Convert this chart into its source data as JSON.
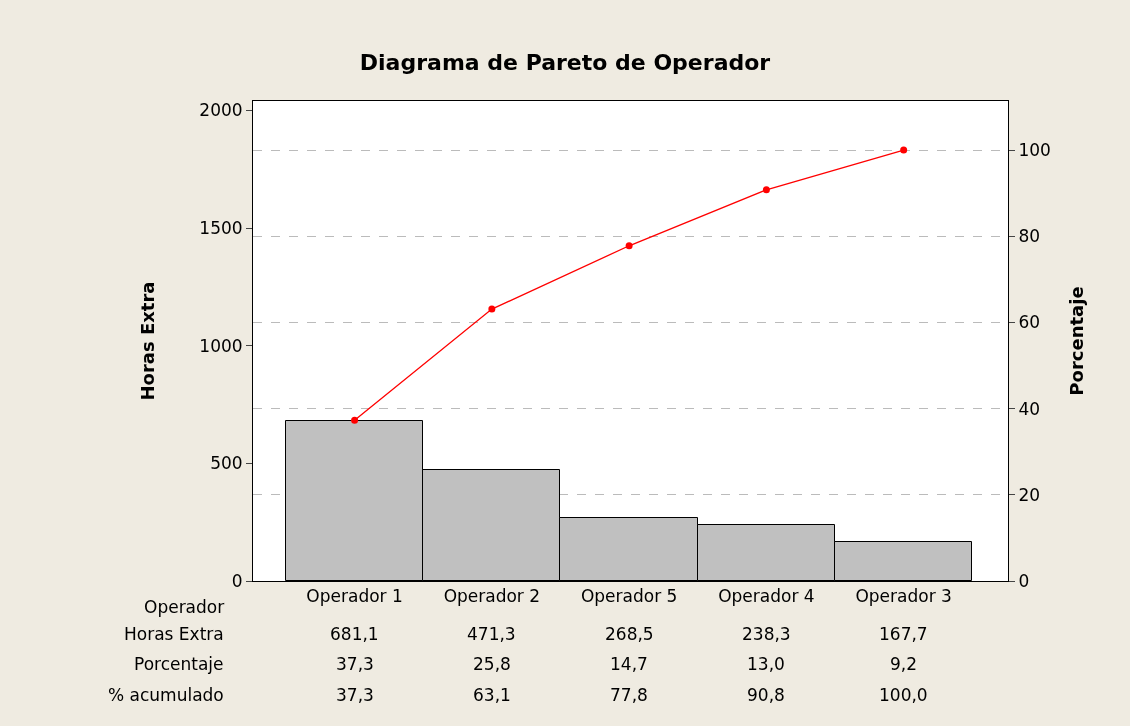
{
  "chart_data": {
    "type": "bar",
    "title": "Diagrama de Pareto de Operador",
    "xlabel": "Operador",
    "ylabel": "Horas Extra",
    "y2label": "Porcentaje",
    "categories": [
      "Operador 1",
      "Operador 2",
      "Operador 5",
      "Operador 4",
      "Operador 3"
    ],
    "series": [
      {
        "color": "#c0c0c0",
        "values": [
          681.1,
          471.3,
          268.5,
          238.3,
          167.7
        ],
        "value_labels": [
          "681,1",
          "471,3",
          "268,5",
          "238,3",
          "167,7"
        ]
      },
      {
        "type": "line",
        "axis": "y2",
        "color": "#ff0000",
        "marker": "circle",
        "values": [
          37.3,
          63.1,
          77.8,
          90.8,
          100.0
        ],
        "value_labels": [
          "37,3",
          "63,1",
          "77,8",
          "90,8",
          "100,0"
        ]
      }
    ],
    "ylim": [
      0,
      2040
    ],
    "yticks": [
      0,
      500,
      1000,
      1500,
      2000
    ],
    "y2lim": [
      0,
      111.4
    ],
    "y2ticks": [
      0,
      20,
      40,
      60,
      80,
      100
    ],
    "grid": "y2",
    "annotations": [
      "Horas Extra",
      "Porcentaje",
      "% acumulado",
      "37,3",
      "25,8",
      "14,7",
      "13,0",
      "9,2"
    ]
  }
}
